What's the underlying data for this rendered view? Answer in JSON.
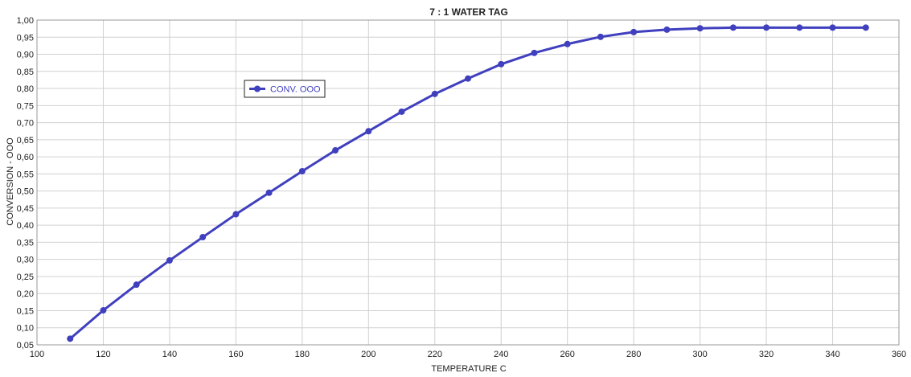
{
  "chart_data": {
    "type": "line",
    "title": "7 : 1 WATER TAG",
    "xlabel": "TEMPERATURE C",
    "ylabel": "CONVERSION - OOO",
    "xlim": [
      100,
      360
    ],
    "ylim": [
      0.05,
      1.0
    ],
    "x_ticks": [
      "100",
      "120",
      "140",
      "160",
      "180",
      "200",
      "220",
      "240",
      "260",
      "280",
      "300",
      "320",
      "340",
      "360"
    ],
    "y_ticks": [
      "0,05",
      "0,10",
      "0,15",
      "0,20",
      "0,25",
      "0,30",
      "0,35",
      "0,40",
      "0,45",
      "0,50",
      "0,55",
      "0,60",
      "0,65",
      "0,70",
      "0,75",
      "0,80",
      "0,85",
      "0,90",
      "0,95",
      "1,00"
    ],
    "grid": true,
    "legend_position": "upper-left",
    "series": [
      {
        "name": "CONV. OOO",
        "color": "#4040bf",
        "x": [
          110,
          120,
          130,
          140,
          150,
          160,
          170,
          180,
          190,
          200,
          210,
          220,
          230,
          240,
          250,
          260,
          270,
          280,
          290,
          300,
          310,
          320,
          330,
          340,
          350
        ],
        "y": [
          0.068,
          0.151,
          0.226,
          0.297,
          0.365,
          0.432,
          0.495,
          0.558,
          0.619,
          0.675,
          0.732,
          0.784,
          0.829,
          0.871,
          0.904,
          0.93,
          0.951,
          0.965,
          0.972,
          0.976,
          0.978,
          0.978,
          0.978,
          0.978,
          0.978
        ]
      }
    ]
  }
}
